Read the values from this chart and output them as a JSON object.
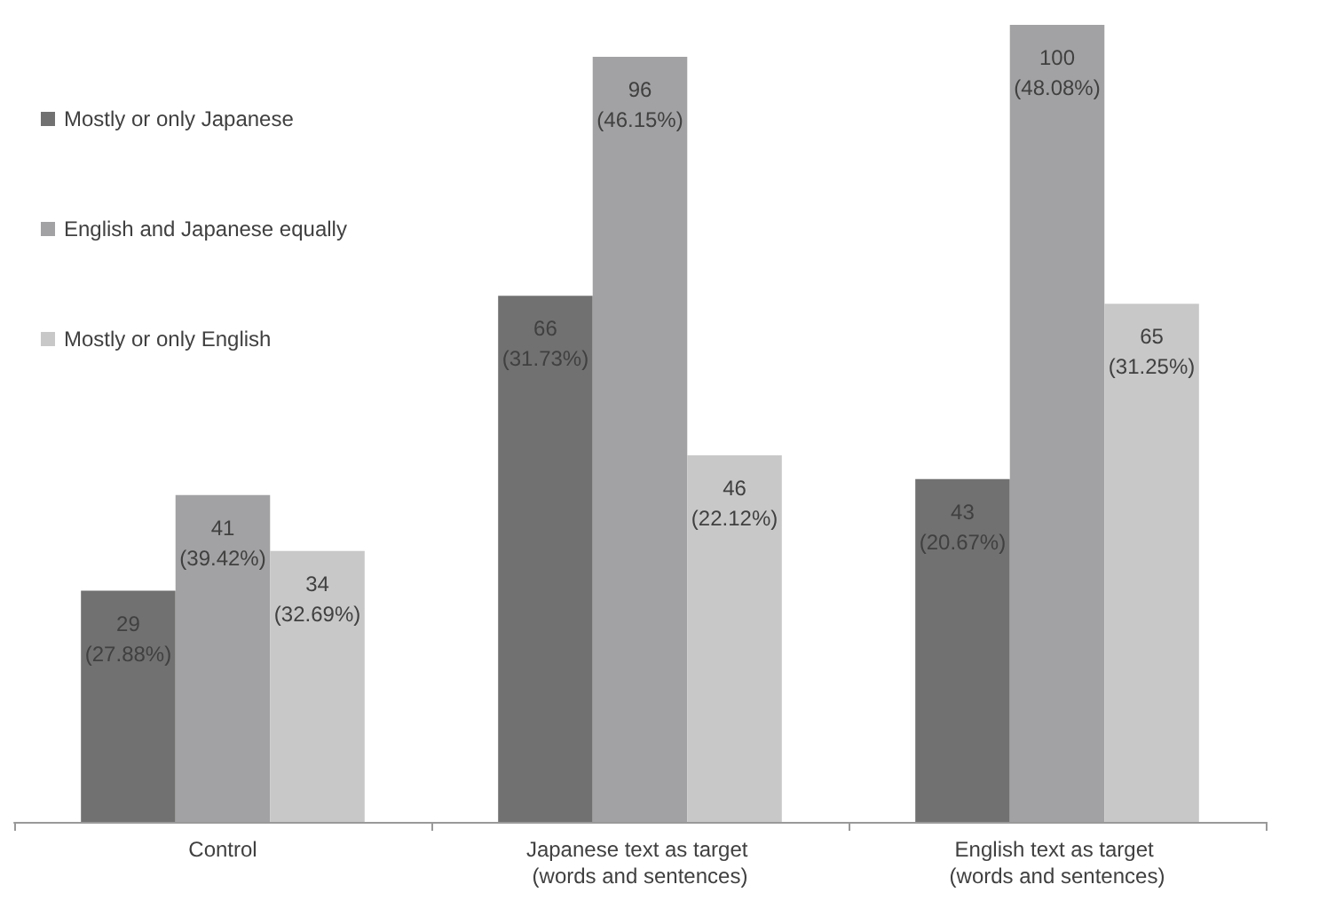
{
  "chart_data": {
    "type": "bar",
    "categories": [
      "Control",
      "Japanese text as target (words and sentences)",
      "English text as target (words and sentences)"
    ],
    "series": [
      {
        "name": "Mostly or only Japanese",
        "color": "#717171",
        "values": [
          29,
          66,
          43
        ],
        "value_labels": [
          "29\n(27.88%)",
          "66\n(31.73%)",
          "43\n(20.67%)"
        ]
      },
      {
        "name": "English and Japanese equally",
        "color": "#a2a2a4",
        "values": [
          41,
          96,
          100
        ],
        "value_labels": [
          "41\n(39.42%)",
          "96\n(46.15%)",
          "100\n(48.08%)"
        ]
      },
      {
        "name": "Mostly or only English",
        "color": "#c8c8c8",
        "values": [
          34,
          46,
          65
        ],
        "value_labels": [
          "34\n(32.69%)",
          "46\n(22.12%)",
          "65\n(31.25%)"
        ]
      }
    ],
    "legend": "top left"
  }
}
